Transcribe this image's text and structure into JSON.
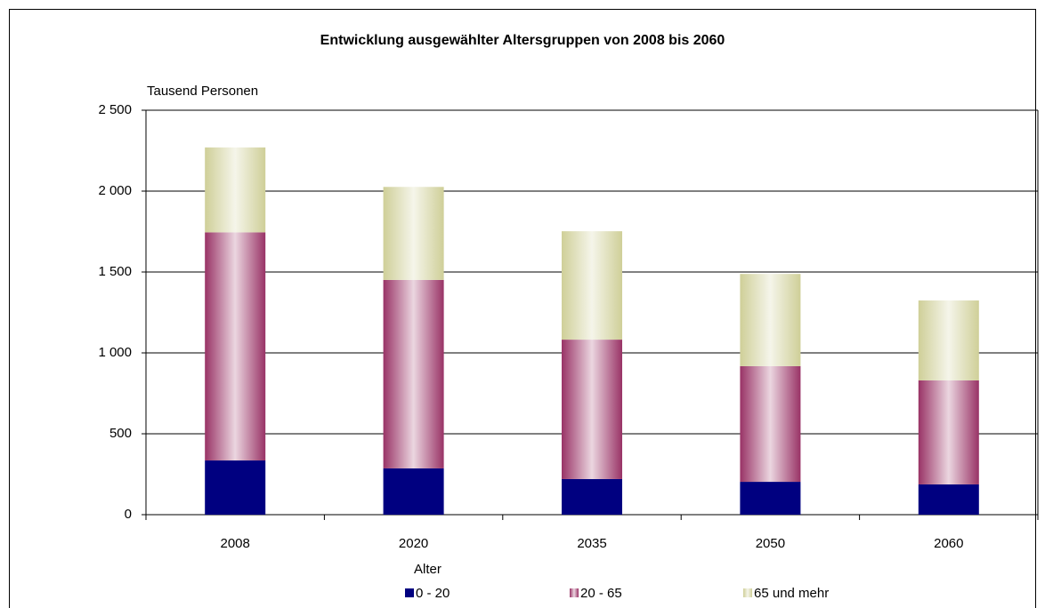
{
  "chart_data": {
    "type": "stacked_bar",
    "title": "Entwicklung ausgewählter Altersgruppen von 2008 bis 2060",
    "y_label": "Tausend Personen",
    "legend_title": "Alter",
    "categories": [
      "2008",
      "2020",
      "2035",
      "2050",
      "2060"
    ],
    "series": [
      {
        "name": "0 - 20",
        "color": "#000080",
        "fill_style": "solid",
        "values": [
          335,
          286,
          220,
          203,
          187
        ]
      },
      {
        "name": "20 - 65",
        "color": "#993366",
        "fill_style": "gradient",
        "values": [
          1410,
          1165,
          862,
          715,
          643
        ]
      },
      {
        "name": "65 und mehr",
        "color": "#cfcf98",
        "fill_style": "gradient",
        "values": [
          525,
          575,
          670,
          570,
          494
        ]
      }
    ],
    "ylim": [
      0,
      2500
    ],
    "yticks": [
      0,
      500,
      {
        "value": 1000,
        "label": "1 000"
      },
      {
        "value": 1500,
        "label": "1 500"
      },
      {
        "value": 2000,
        "label": "2 000"
      },
      {
        "value": 2500,
        "label": "2 500"
      }
    ],
    "grid": true,
    "legend": "bottom"
  }
}
